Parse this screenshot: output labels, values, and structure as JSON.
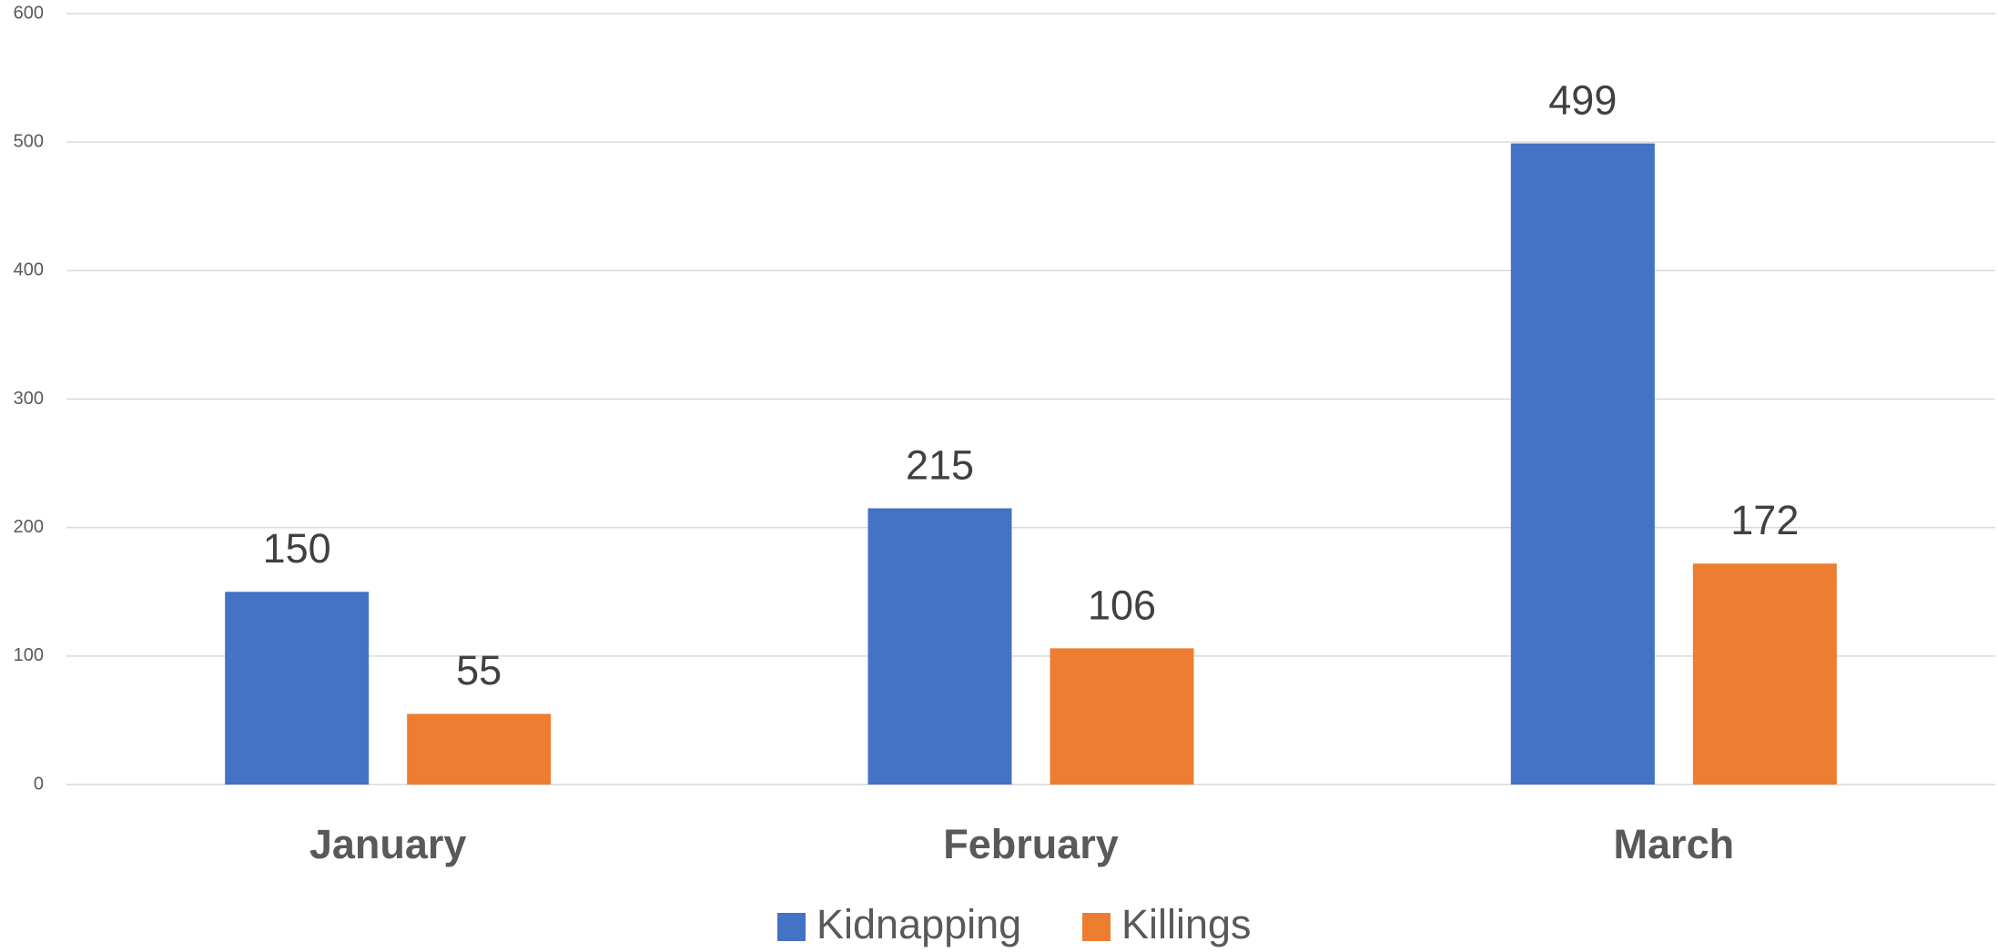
{
  "chart_data": {
    "type": "bar",
    "categories": [
      "January",
      "February",
      "March"
    ],
    "series": [
      {
        "name": "Kidnapping",
        "color": "#4472c4",
        "values": [
          150,
          215,
          499
        ]
      },
      {
        "name": "Killings",
        "color": "#ed7d31",
        "values": [
          55,
          106,
          172
        ]
      }
    ],
    "ylim": [
      0,
      600
    ],
    "yticks": [
      0,
      100,
      200,
      300,
      400,
      500,
      600
    ],
    "grid": true,
    "legend": "bottom"
  }
}
